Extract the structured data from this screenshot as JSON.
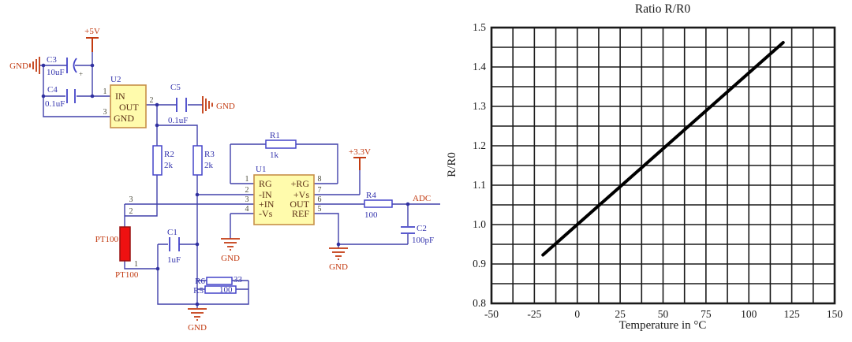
{
  "schematic": {
    "gnd_label": "GND",
    "power_labels": {
      "v5": "+5V",
      "v33": "+3.3V",
      "adc": "ADC"
    },
    "net_labels": {
      "n3": "3",
      "n2": "2"
    },
    "c3_polarity": "+",
    "components": {
      "c1": {
        "ref": "C1",
        "value": "1uF"
      },
      "c2": {
        "ref": "C2",
        "value": "100pF"
      },
      "c3": {
        "ref": "C3",
        "value": "10uF"
      },
      "c4": {
        "ref": "C4",
        "value": "0.1uF"
      },
      "c5": {
        "ref": "C5",
        "value": "0.1uF"
      },
      "r1": {
        "ref": "R1",
        "value": "1k"
      },
      "r2": {
        "ref": "R2",
        "value": "2k"
      },
      "r3": {
        "ref": "R3",
        "value": "2k"
      },
      "r4": {
        "ref": "R4",
        "value": "100"
      },
      "r5": {
        "ref": "R5",
        "value": "100"
      },
      "r6": {
        "ref": "R6",
        "value": "33"
      },
      "u1": {
        "ref": "U1",
        "pin_names_left": [
          "RG",
          "-IN",
          "+IN",
          "-Vs"
        ],
        "pin_names_right": [
          "+RG",
          "+Vs",
          "OUT",
          "REF"
        ],
        "pin_numbers_left": [
          "1",
          "2",
          "3",
          "4"
        ],
        "pin_numbers_right": [
          "8",
          "7",
          "6",
          "5"
        ]
      },
      "u2": {
        "ref": "U2",
        "pin_names": [
          "IN",
          "OUT",
          "GND"
        ],
        "pin_numbers": [
          "1",
          "2",
          "3"
        ]
      },
      "pt100": {
        "ref": "PT100",
        "label": "PT100",
        "pin_number": "1"
      }
    }
  },
  "chart_data": {
    "type": "line",
    "title": "Ratio R/R0",
    "xlabel": "Temperature in °C",
    "ylabel": "R/R0",
    "xlim": [
      -50,
      150
    ],
    "ylim": [
      0.8,
      1.5
    ],
    "x_tick_labels": [
      "-50",
      "-25",
      "0",
      "25",
      "50",
      "75",
      "100",
      "125",
      "150"
    ],
    "y_tick_labels": [
      "0.8",
      "0.9",
      "1.0",
      "1.1",
      "1.2",
      "1.3",
      "1.4",
      "1.5"
    ],
    "x_divisions": 16,
    "y_divisions": 14,
    "grid": true,
    "legend_position": "none",
    "series": [
      {
        "x": [
          -20,
          120
        ],
        "y": [
          0.923,
          1.462
        ],
        "color": "#000000",
        "width": 4
      }
    ]
  }
}
